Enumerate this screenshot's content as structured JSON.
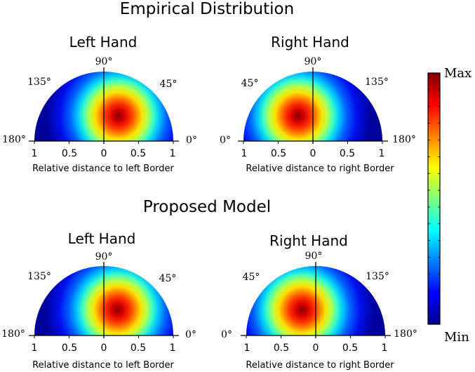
{
  "figure": {
    "section_titles": [
      "Empirical Distribution",
      "Proposed Model"
    ]
  },
  "chart_data": [
    {
      "type": "heatmap",
      "section": "Empirical Distribution",
      "title": "Left Hand",
      "angle_labels": [
        "90°",
        "135°",
        "45°",
        "180°",
        "0°"
      ],
      "tick_labels": [
        "1",
        "0.5",
        "0",
        "0.5",
        "1"
      ],
      "xlabel": "Relative distance to left Border",
      "radial_range": [
        0,
        1
      ],
      "peak": {
        "direction": "right-of-vertical",
        "angle_deg": 60,
        "distance": 0.42
      }
    },
    {
      "type": "heatmap",
      "section": "Empirical Distribution",
      "title": "Right Hand",
      "angle_labels": [
        "90°",
        "45°",
        "135°",
        "0°",
        "180°"
      ],
      "tick_labels": [
        "1",
        "0.5",
        "0",
        "0.5",
        "1"
      ],
      "xlabel": "Relative distance to right Border",
      "radial_range": [
        0,
        1
      ],
      "peak": {
        "direction": "left-of-vertical",
        "angle_deg": 60,
        "distance": 0.42
      }
    },
    {
      "type": "heatmap",
      "section": "Proposed Model",
      "title": "Left Hand",
      "angle_labels": [
        "90°",
        "135°",
        "45°",
        "180°",
        "0°"
      ],
      "tick_labels": [
        "1",
        "0.5",
        "0",
        "0.5",
        "1"
      ],
      "xlabel": "Relative distance to left Border",
      "radial_range": [
        0,
        1
      ],
      "peak": {
        "direction": "right-of-vertical",
        "angle_deg": 62,
        "distance": 0.42
      }
    },
    {
      "type": "heatmap",
      "section": "Proposed Model",
      "title": "Right Hand",
      "angle_labels": [
        "90°",
        "45°",
        "135°",
        "0°",
        "180°"
      ],
      "tick_labels": [
        "1",
        "0.5",
        "0",
        "0.5",
        "1"
      ],
      "xlabel": "Relative distance to right Border",
      "radial_range": [
        0,
        1
      ],
      "peak": {
        "direction": "left-of-vertical",
        "angle_deg": 62,
        "distance": 0.42
      }
    }
  ],
  "colorbar": {
    "max_label": "Max",
    "min_label": "Min",
    "colormap": "jet",
    "colors": [
      "#00008f",
      "#0000ff",
      "#0080ff",
      "#00ffff",
      "#80ff80",
      "#ffff00",
      "#ff8000",
      "#ff0000",
      "#800000"
    ]
  }
}
